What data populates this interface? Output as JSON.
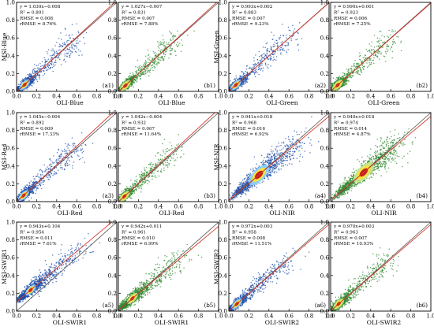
{
  "figure": {
    "dot_colors": {
      "blue_points": "#1f4fa8",
      "green_points": "#2e8a2e",
      "hot_core": "#c81e1e",
      "warm_ring": "#ffe23a",
      "light_ring": "#8fd6ff",
      "one_to_one_line": "#555555",
      "fit_line": "#d63a2a"
    }
  },
  "chart_data": [
    {
      "id": "a1",
      "type": "scatter",
      "panel_label": "(a1)",
      "xlabel": "OLI-Blue",
      "ylabel": "MSI-Blue",
      "xlim": [
        0,
        1
      ],
      "ylim": [
        0,
        1
      ],
      "xticks": [
        "0.0",
        "0.2",
        "0.4",
        "0.6",
        "0.8",
        "1.0"
      ],
      "yticks": [
        "0.0",
        "0.2",
        "0.4",
        "0.6",
        "0.8",
        "1.0"
      ],
      "color": "blue",
      "stats": {
        "equation": "y = 1.030x−0.008",
        "r2_label": "R",
        "r2_value": "= 0.801",
        "rmse": "RMSE = 0.008",
        "rrmse": "rRMSE = 8.76%"
      },
      "fit": {
        "slope": 1.03,
        "intercept": -0.008
      },
      "one_to_one": true,
      "cloud": {
        "center": [
          0.08,
          0.08
        ],
        "xmax": 0.62,
        "ymax": 0.62
      }
    },
    {
      "id": "b1",
      "type": "scatter",
      "panel_label": "(b1)",
      "xlabel": "OLI-Blue",
      "ylabel": "",
      "xlim": [
        0,
        1
      ],
      "ylim": [
        0,
        1
      ],
      "xticks": [
        "0.0",
        "0.2",
        "0.4",
        "0.6",
        "0.8",
        "1.0"
      ],
      "yticks": [
        "0.0",
        "0.2",
        "0.4",
        "0.6",
        "0.8",
        "1.0"
      ],
      "color": "green",
      "stats": {
        "equation": "y = 1.027x−0.007",
        "r2_label": "R",
        "r2_value": "= 0.831",
        "rmse": "RMSE = 0.007",
        "rrmse": "rRMSE = 7.88%"
      },
      "fit": {
        "slope": 1.027,
        "intercept": -0.007
      },
      "one_to_one": true,
      "cloud": {
        "center": [
          0.07,
          0.07
        ],
        "xmax": 0.6,
        "ymax": 0.6
      }
    },
    {
      "id": "a2",
      "type": "scatter",
      "panel_label": "(a2)",
      "xlabel": "OLI-Green",
      "ylabel": "MSI-Green",
      "xlim": [
        0,
        1
      ],
      "ylim": [
        0,
        1
      ],
      "xticks": [
        "0.0",
        "0.2",
        "0.4",
        "0.6",
        "0.8",
        "1.0"
      ],
      "yticks": [
        "0.0",
        "0.2",
        "0.4",
        "0.6",
        "0.8",
        "1.0"
      ],
      "color": "blue",
      "stats": {
        "equation": "y = 0.993x+0.002",
        "r2_label": "R",
        "r2_value": "= 0.883",
        "rmse": "RMSE = 0.007",
        "rrmse": "rRMSE = 9.23%"
      },
      "fit": {
        "slope": 0.993,
        "intercept": 0.002
      },
      "one_to_one": true,
      "cloud": {
        "center": [
          0.07,
          0.07
        ],
        "xmax": 0.65,
        "ymax": 0.65
      }
    },
    {
      "id": "b2",
      "type": "scatter",
      "panel_label": "(b2)",
      "xlabel": "OLI-Green",
      "ylabel": "",
      "xlim": [
        0,
        1
      ],
      "ylim": [
        0,
        1
      ],
      "xticks": [
        "0.0",
        "0.2",
        "0.4",
        "0.6",
        "0.8",
        "1.0"
      ],
      "yticks": [
        "0.0",
        "0.2",
        "0.4",
        "0.6",
        "0.8",
        "1.0"
      ],
      "color": "green",
      "stats": {
        "equation": "y = 0.990x+0.001",
        "r2_label": "R",
        "r2_value": "= 0.923",
        "rmse": "RMSE = 0.006",
        "rrmse": "rRMSE = 7.25%"
      },
      "fit": {
        "slope": 0.99,
        "intercept": 0.001
      },
      "one_to_one": true,
      "cloud": {
        "center": [
          0.07,
          0.07
        ],
        "xmax": 0.62,
        "ymax": 0.62
      }
    },
    {
      "id": "a3",
      "type": "scatter",
      "panel_label": "(a3)",
      "xlabel": "OLI-Red",
      "ylabel": "MSI-Red",
      "xlim": [
        0,
        1
      ],
      "ylim": [
        0,
        1
      ],
      "xticks": [
        "0.0",
        "0.2",
        "0.4",
        "0.6",
        "0.8",
        "1.0"
      ],
      "yticks": [
        "0.0",
        "0.2",
        "0.4",
        "0.6",
        "0.8",
        "1.0"
      ],
      "color": "blue",
      "stats": {
        "equation": "y = 1.045x−0.004",
        "r2_label": "R",
        "r2_value": "= 0.892",
        "rmse": "RMSE = 0.009",
        "rrmse": "rRMSE = 17.33%"
      },
      "fit": {
        "slope": 1.045,
        "intercept": -0.004
      },
      "one_to_one": true,
      "cloud": {
        "center": [
          0.07,
          0.07
        ],
        "xmax": 0.62,
        "ymax": 0.62
      }
    },
    {
      "id": "b3",
      "type": "scatter",
      "panel_label": "(b3)",
      "xlabel": "OLI-Red",
      "ylabel": "",
      "xlim": [
        0,
        1
      ],
      "ylim": [
        0,
        1
      ],
      "xticks": [
        "0.0",
        "0.2",
        "0.4",
        "0.6",
        "0.8",
        "1.0"
      ],
      "yticks": [
        "0.0",
        "0.2",
        "0.4",
        "0.6",
        "0.8",
        "1.0"
      ],
      "color": "green",
      "stats": {
        "equation": "y = 1.042x−0.004",
        "r2_label": "R",
        "r2_value": "= 0.932",
        "rmse": "RMSE = 0.007",
        "rrmse": "rRMSE = 11.64%"
      },
      "fit": {
        "slope": 1.042,
        "intercept": -0.004
      },
      "one_to_one": true,
      "cloud": {
        "center": [
          0.06,
          0.06
        ],
        "xmax": 0.6,
        "ymax": 0.6
      }
    },
    {
      "id": "a4",
      "type": "scatter",
      "panel_label": "(a4)",
      "xlabel": "OLI-NIR",
      "ylabel": "MSI-NIR",
      "xlim": [
        0,
        1
      ],
      "ylim": [
        0,
        1
      ],
      "xticks": [
        "0.0",
        "0.2",
        "0.4",
        "0.6",
        "0.8",
        "1.0"
      ],
      "yticks": [
        "0.0",
        "0.2",
        "0.4",
        "0.6",
        "0.8",
        "1.0"
      ],
      "color": "blue",
      "stats": {
        "equation": "y = 0.941x+0.018",
        "r2_label": "R",
        "r2_value": "= 0.968",
        "rmse": "RMSE = 0.016",
        "rrmse": "rRMSE = 6.92%"
      },
      "fit": {
        "slope": 0.941,
        "intercept": 0.018
      },
      "one_to_one": true,
      "cloud": {
        "center": [
          0.3,
          0.3
        ],
        "xmax": 0.72,
        "ymax": 0.72
      }
    },
    {
      "id": "b4",
      "type": "scatter",
      "panel_label": "(b4)",
      "xlabel": "OLI-NIR",
      "ylabel": "",
      "xlim": [
        0,
        1
      ],
      "ylim": [
        0,
        1
      ],
      "xticks": [
        "0.0",
        "0.2",
        "0.4",
        "0.6",
        "0.8",
        "1.0"
      ],
      "yticks": [
        "0.0",
        "0.2",
        "0.4",
        "0.6",
        "0.8",
        "1.0"
      ],
      "color": "green",
      "stats": {
        "equation": "y = 0.940x+0.018",
        "r2_label": "R",
        "r2_value": "= 0.974",
        "rmse": "RMSE = 0.014",
        "rrmse": "rRMSE = 4.87%"
      },
      "fit": {
        "slope": 0.94,
        "intercept": 0.018
      },
      "one_to_one": true,
      "cloud": {
        "center": [
          0.33,
          0.33
        ],
        "xmax": 0.72,
        "ymax": 0.72
      }
    },
    {
      "id": "a5",
      "type": "scatter",
      "panel_label": "(a5)",
      "xlabel": "OLI-SWIR1",
      "ylabel": "MSI-SWIR1",
      "xlim": [
        0,
        1
      ],
      "ylim": [
        0,
        1
      ],
      "xticks": [
        "0.0",
        "0.2",
        "0.4",
        "0.6",
        "0.8",
        "1.0"
      ],
      "yticks": [
        "0.0",
        "0.2",
        "0.4",
        "0.6",
        "0.8",
        "1.0"
      ],
      "color": "blue",
      "stats": {
        "equation": "y = 0.943x+0.104",
        "r2_label": "R",
        "r2_value": "= 0.954",
        "rmse": "RMSE = 0.011",
        "rrmse": "rRMSE = 7.61%"
      },
      "fit": {
        "slope": 0.943,
        "intercept": 0.104
      },
      "one_to_one": true,
      "cloud": {
        "center": [
          0.14,
          0.14
        ],
        "xmax": 0.68,
        "ymax": 0.68
      }
    },
    {
      "id": "b5",
      "type": "scatter",
      "panel_label": "(b5)",
      "xlabel": "OLI-SWIR1",
      "ylabel": "",
      "xlim": [
        0,
        1
      ],
      "ylim": [
        0,
        1
      ],
      "xticks": [
        "0.0",
        "0.2",
        "0.4",
        "0.6",
        "0.8",
        "1.0"
      ],
      "yticks": [
        "0.0",
        "0.2",
        "0.4",
        "0.6",
        "0.8",
        "1.0"
      ],
      "color": "green",
      "stats": {
        "equation": "y = 0.942x+0.011",
        "r2_label": "R",
        "r2_value": "= 0.961",
        "rmse": "RMSE = 0.010",
        "rrmse": "rRMSE = 6.99%"
      },
      "fit": {
        "slope": 0.942,
        "intercept": 0.011
      },
      "one_to_one": true,
      "cloud": {
        "center": [
          0.14,
          0.14
        ],
        "xmax": 0.66,
        "ymax": 0.66
      }
    },
    {
      "id": "a6",
      "type": "scatter",
      "panel_label": "(a6)",
      "xlabel": "OLI-SWIR2",
      "ylabel": "MSI-SWIR2",
      "xlim": [
        0,
        1
      ],
      "ylim": [
        0,
        1
      ],
      "xticks": [
        "0.0",
        "0.2",
        "0.4",
        "0.6",
        "0.8",
        "1.0"
      ],
      "yticks": [
        "0.0",
        "0.2",
        "0.4",
        "0.6",
        "0.8",
        "1.0"
      ],
      "color": "blue",
      "stats": {
        "equation": "y = 0.972x+0.003",
        "r2_label": "R",
        "r2_value": "= 0.958",
        "rmse": "RMSE = 0.008",
        "rrmse": "rRMSE = 11.51%"
      },
      "fit": {
        "slope": 0.972,
        "intercept": 0.003
      },
      "one_to_one": true,
      "cloud": {
        "center": [
          0.08,
          0.08
        ],
        "xmax": 0.62,
        "ymax": 0.62
      }
    },
    {
      "id": "b6",
      "type": "scatter",
      "panel_label": "(b6)",
      "xlabel": "OLI-SWIR2",
      "ylabel": "",
      "xlim": [
        0,
        1
      ],
      "ylim": [
        0,
        1
      ],
      "xticks": [
        "0.0",
        "0.2",
        "0.4",
        "0.6",
        "0.8",
        "1.0"
      ],
      "yticks": [
        "0.0",
        "0.2",
        "0.4",
        "0.6",
        "0.8",
        "1.0"
      ],
      "color": "green",
      "stats": {
        "equation": "y = 0.970x+0.003",
        "r2_label": "R",
        "r2_value": "= 0.963",
        "rmse": "RMSE = 0.007",
        "rrmse": "rRMSE = 10.93%"
      },
      "fit": {
        "slope": 0.97,
        "intercept": 0.003
      },
      "one_to_one": true,
      "cloud": {
        "center": [
          0.08,
          0.08
        ],
        "xmax": 0.6,
        "ymax": 0.6
      }
    }
  ]
}
